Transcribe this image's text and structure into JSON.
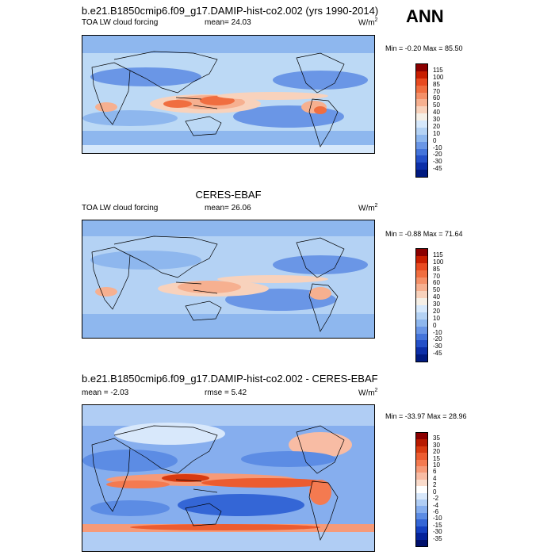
{
  "header": {
    "main_title": "b.e21.B1850cmip6.f09_g17.DAMIP-hist-co2.002 (yrs 1990-2014)",
    "season": "ANN"
  },
  "panels": [
    {
      "title": "",
      "variable": "TOA LW cloud forcing",
      "stat": "mean=  24.03",
      "units": "W/m",
      "units_sup": "2",
      "minmax": "Min =  -0.20 Max =  85.50",
      "levels": [
        "115",
        "100",
        "85",
        "70",
        "60",
        "50",
        "40",
        "30",
        "20",
        "10",
        "0",
        "-10",
        "-20",
        "-30",
        "-45"
      ],
      "colors": [
        "#8b0000",
        "#c81e00",
        "#e84a20",
        "#f06e40",
        "#f49068",
        "#f6b090",
        "#f8d2bc",
        "#f5efe6",
        "#d6e8fb",
        "#b4d2f4",
        "#8eb7ee",
        "#6a96e6",
        "#4474da",
        "#2450c8",
        "#0c2fa8",
        "#001a80"
      ]
    },
    {
      "title": "CERES-EBAF",
      "variable": "TOA LW cloud forcing",
      "stat": "mean=  26.06",
      "units": "W/m",
      "units_sup": "2",
      "minmax": "Min =  -0.88 Max =  71.64",
      "levels": [
        "115",
        "100",
        "85",
        "70",
        "60",
        "50",
        "40",
        "30",
        "20",
        "10",
        "0",
        "-10",
        "-20",
        "-30",
        "-45"
      ],
      "colors": [
        "#8b0000",
        "#c81e00",
        "#e84a20",
        "#f06e40",
        "#f49068",
        "#f6b090",
        "#f8d2bc",
        "#f5efe6",
        "#d6e8fb",
        "#b4d2f4",
        "#8eb7ee",
        "#6a96e6",
        "#4474da",
        "#2450c8",
        "#0c2fa8",
        "#001a80"
      ]
    },
    {
      "title": "b.e21.B1850cmip6.f09_g17.DAMIP-hist-co2.002 - CERES-EBAF",
      "variable": "mean =  -2.03",
      "stat": "rmse =   5.42",
      "units": "W/m",
      "units_sup": "2",
      "minmax": "Min = -33.97 Max =  28.96",
      "levels": [
        "35",
        "30",
        "20",
        "15",
        "10",
        "6",
        "4",
        "2",
        "0",
        "-2",
        "-4",
        "-6",
        "-10",
        "-15",
        "-30",
        "-35"
      ],
      "colors": [
        "#8b0000",
        "#b81a00",
        "#d83a10",
        "#ec5c30",
        "#f47a50",
        "#f69a78",
        "#f8bca4",
        "#fadccc",
        "#ffffff",
        "#d8e8fb",
        "#b0cdf4",
        "#86aeee",
        "#5c8ce4",
        "#3466d6",
        "#1440c0",
        "#04229a",
        "#00106c"
      ]
    }
  ]
}
